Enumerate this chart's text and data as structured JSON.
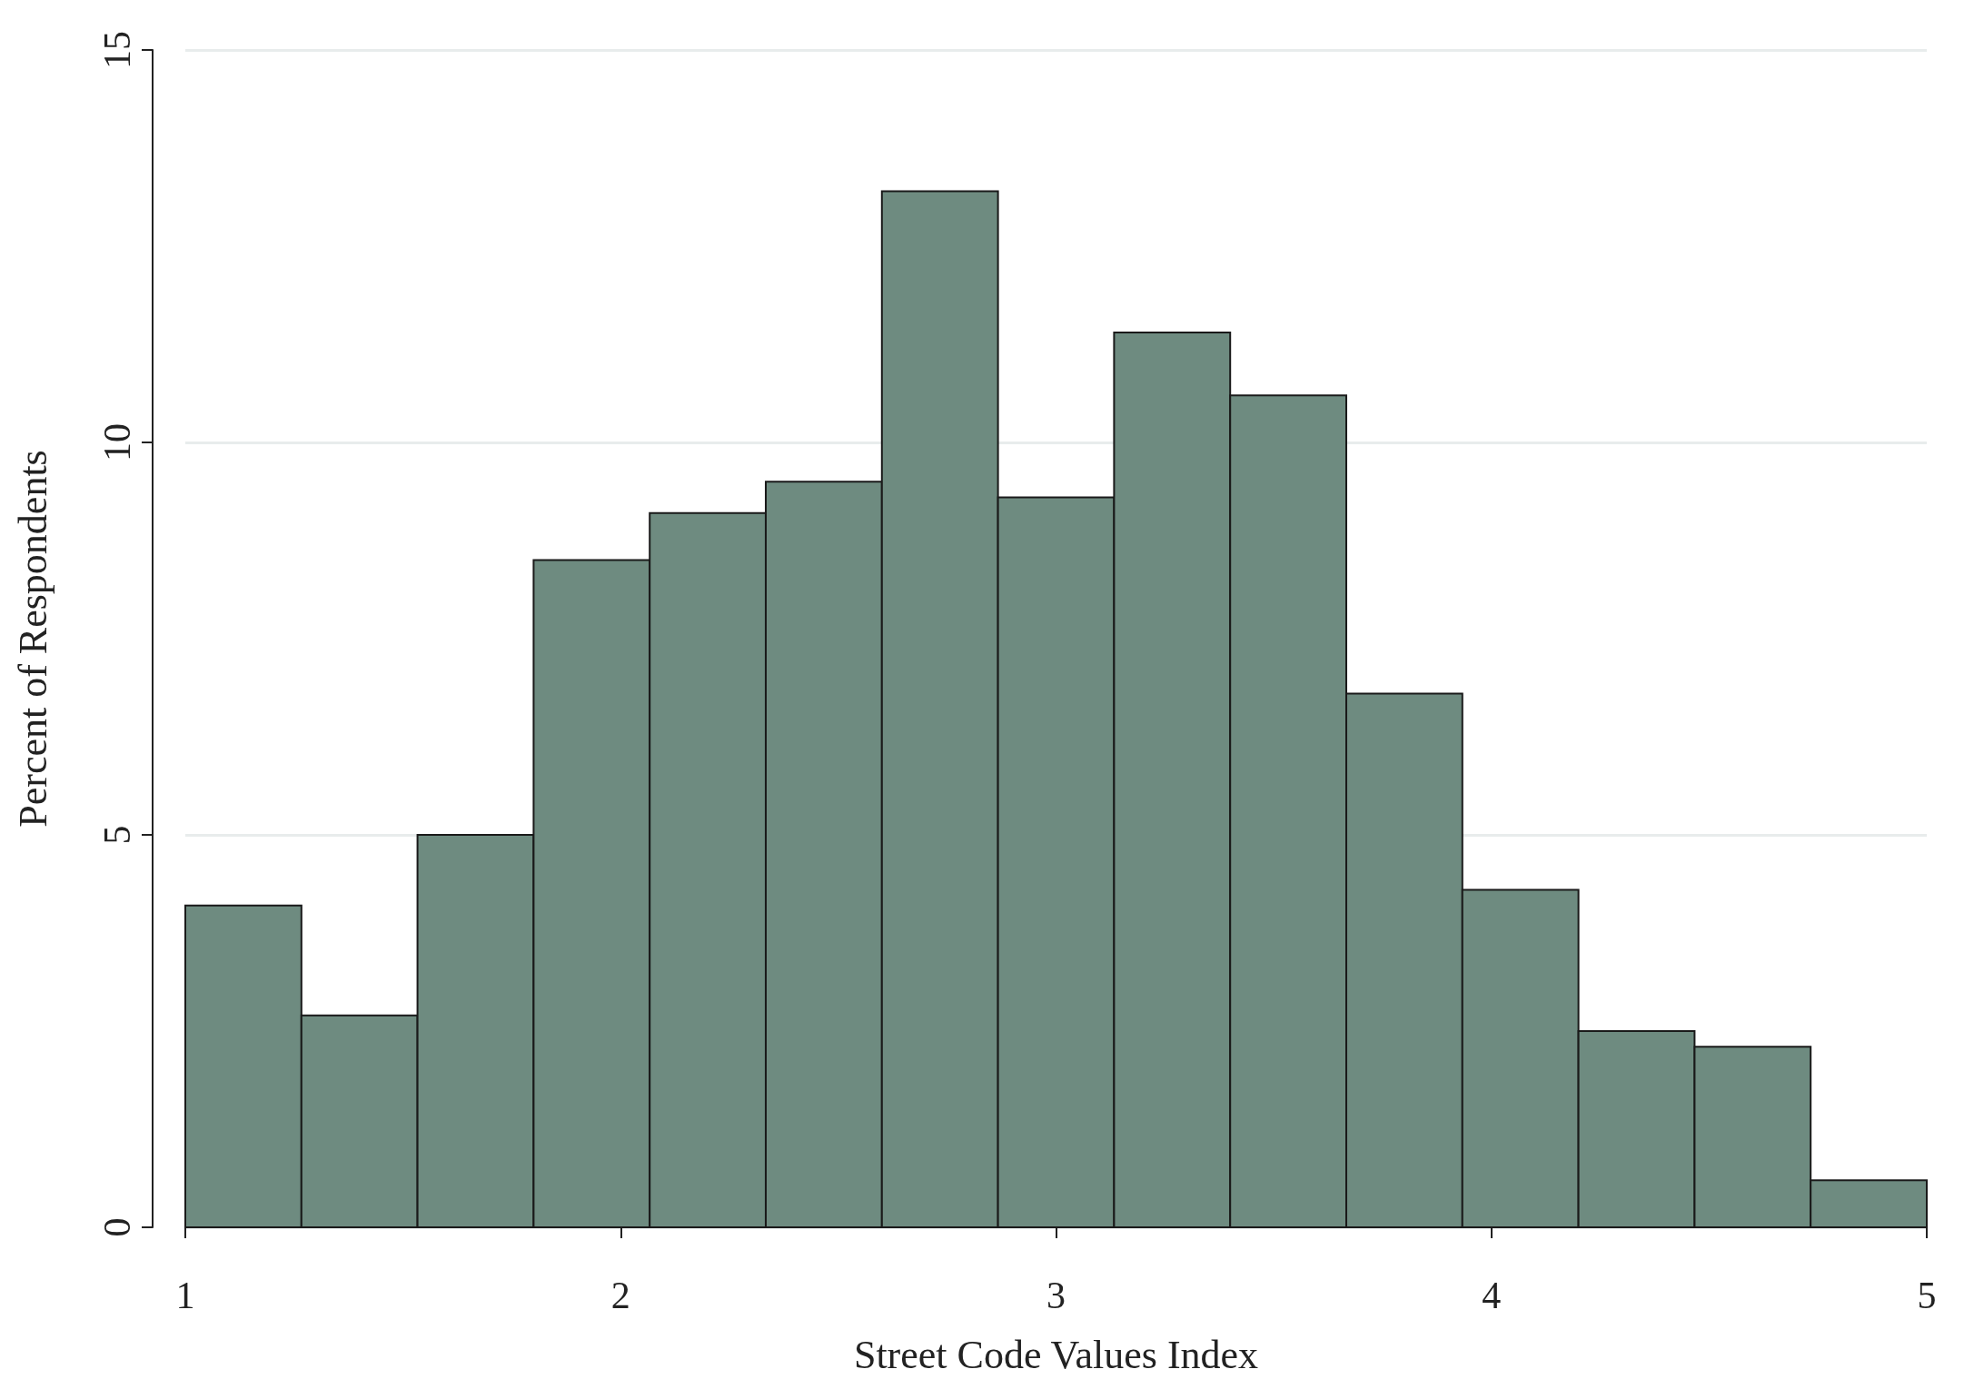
{
  "chart_data": {
    "type": "histogram",
    "xlabel": "Street Code Values Index",
    "ylabel": "Percent of Respondents",
    "bins": [
      1,
      1.2667,
      1.5333,
      1.8,
      2.0667,
      2.3333,
      2.6,
      2.8667,
      3.1333,
      3.4,
      3.6667,
      3.9333,
      4.2,
      4.4667,
      4.7333,
      5
    ],
    "values": [
      4.1,
      2.7,
      5.0,
      8.5,
      9.1,
      9.5,
      13.2,
      9.3,
      11.4,
      10.6,
      6.8,
      4.3,
      2.5,
      2.3,
      0.6
    ],
    "color": "#6e8b80",
    "xlim": [
      1,
      5
    ],
    "xticks": [
      1,
      2,
      3,
      4,
      5
    ],
    "ylim": [
      0,
      15
    ],
    "yticks": [
      0,
      5,
      10,
      15
    ],
    "grid": "y"
  }
}
